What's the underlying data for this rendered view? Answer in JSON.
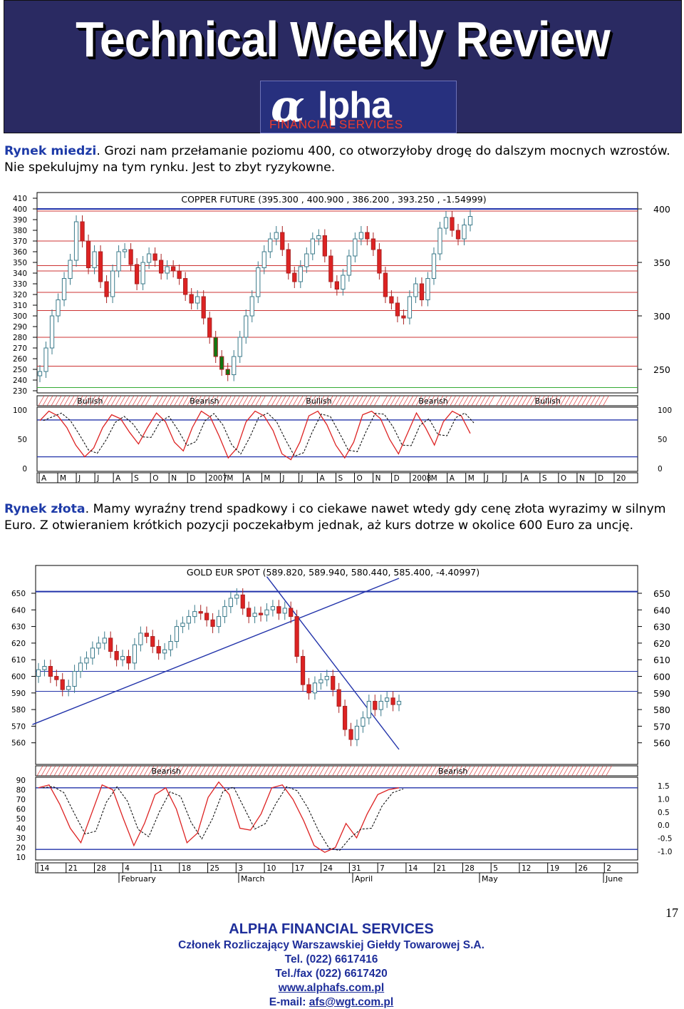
{
  "header": {
    "title": "Technical Weekly Review",
    "logo_main": "lpha",
    "logo_sub": "FINANCIAL SERVICES"
  },
  "copper": {
    "lead": "Rynek miedzi",
    "text": ". Grozi nam przełamanie poziomu 400, co otworzyłoby drogę do dalszym mocnych wzrostów. Nie spekulujmy na tym rynku. Jest to zbyt ryzykowne."
  },
  "gold": {
    "lead": "Rynek złota",
    "text": ". Mamy wyraźny trend spadkowy i co ciekawe nawet wtedy gdy cenę złota wyrazimy w silnym Euro. Z otwieraniem krótkich pozycji poczekałbym jednak, aż kurs dotrze w okolice 600 Euro za uncję."
  },
  "chart_data": [
    {
      "type": "candlestick",
      "title": "COPPER FUTURE (395.300 , 400.900 , 386.200 , 393.250 , -1.54999)",
      "left_axis_ticks": [
        230,
        240,
        250,
        260,
        270,
        280,
        290,
        300,
        310,
        320,
        330,
        340,
        350,
        360,
        370,
        380,
        390,
        400,
        410
      ],
      "right_axis_ticks": [
        250,
        300,
        350,
        400
      ],
      "ylim": [
        230,
        410
      ],
      "hlines": [
        400,
        398,
        370,
        347,
        342,
        322,
        305,
        280,
        253,
        233
      ],
      "trend_labels": [
        "Bullish",
        "Bearish",
        "Bullish",
        "Bearish",
        "Bullish"
      ],
      "oscillator_ticks": [
        0,
        50,
        100
      ],
      "x_labels": [
        "A",
        "M",
        "J",
        "J",
        "A",
        "S",
        "O",
        "N",
        "D",
        "2007",
        "M",
        "A",
        "M",
        "J",
        "J",
        "A",
        "S",
        "O",
        "N",
        "D",
        "2008",
        "M",
        "A",
        "M",
        "J",
        "J",
        "A",
        "S",
        "O",
        "N",
        "D",
        "20"
      ],
      "closes": [
        248,
        270,
        300,
        315,
        335,
        352,
        388,
        370,
        345,
        360,
        332,
        318,
        342,
        360,
        362,
        348,
        330,
        350,
        358,
        352,
        340,
        346,
        342,
        335,
        320,
        312,
        318,
        298,
        280,
        262,
        250,
        245,
        262,
        280,
        300,
        318,
        345,
        360,
        372,
        378,
        362,
        340,
        332,
        346,
        358,
        372,
        375,
        356,
        332,
        325,
        338,
        356,
        372,
        378,
        372,
        362,
        340,
        318,
        312,
        300,
        298,
        318,
        330,
        315,
        335,
        358,
        382,
        392,
        380,
        372,
        385,
        393
      ],
      "oscillator_k": [
        82,
        98,
        90,
        70,
        40,
        20,
        35,
        70,
        92,
        85,
        62,
        42,
        70,
        95,
        80,
        45,
        30,
        70,
        98,
        88,
        55,
        18,
        35,
        80,
        98,
        90,
        65,
        25,
        15,
        45,
        90,
        98,
        75,
        40,
        18,
        45,
        92,
        98,
        85,
        50,
        25,
        60,
        95,
        70,
        40,
        80,
        98,
        90,
        60
      ]
    },
    {
      "type": "candlestick",
      "title": "GOLD EUR SPOT (589.820, 589.940, 580.440, 585.400, -4.40997)",
      "left_axis_ticks": [
        560,
        570,
        580,
        590,
        600,
        610,
        620,
        630,
        640,
        650
      ],
      "right_axis_ticks": [
        560,
        570,
        580,
        590,
        600,
        610,
        620,
        630,
        640,
        650
      ],
      "ylim": [
        553,
        656
      ],
      "hlines": [
        651,
        603,
        591
      ],
      "trend_labels": [
        "Bearish",
        "Bearish"
      ],
      "oscillator_left_ticks": [
        10,
        20,
        30,
        40,
        50,
        60,
        70,
        80,
        90
      ],
      "oscillator_right_ticks": [
        "-1.0",
        "-0.5",
        "0.0",
        "0.5",
        "1.0",
        "1.5"
      ],
      "x_labels": [
        "14",
        "21",
        "28",
        "4",
        "11",
        "18",
        "25",
        "3",
        "10",
        "17",
        "24",
        "31",
        "7",
        "14",
        "21",
        "28",
        "5",
        "12",
        "19",
        "26",
        "2"
      ],
      "month_labels": [
        "February",
        "March",
        "April",
        "May",
        "June"
      ],
      "closes": [
        604,
        606,
        600,
        598,
        592,
        594,
        603,
        608,
        611,
        617,
        620,
        623,
        615,
        610,
        612,
        608,
        619,
        626,
        624,
        618,
        614,
        616,
        621,
        630,
        632,
        636,
        639,
        638,
        634,
        630,
        636,
        642,
        647,
        649,
        641,
        636,
        638,
        637,
        640,
        642,
        638,
        641,
        636,
        612,
        595,
        590,
        596,
        598,
        600,
        592,
        582,
        568,
        562,
        570,
        575,
        585,
        580,
        585,
        587,
        583,
        585
      ],
      "oscillator_k": [
        82,
        85,
        65,
        40,
        25,
        55,
        85,
        80,
        50,
        22,
        45,
        75,
        82,
        60,
        25,
        35,
        72,
        88,
        75,
        40,
        38,
        55,
        82,
        85,
        70,
        48,
        22,
        15,
        20,
        45,
        30,
        55,
        75,
        80,
        82
      ]
    }
  ],
  "footer": {
    "company": "ALPHA FINANCIAL SERVICES",
    "member": "Członek Rozliczający Warszawskiej Giełdy Towarowej S.A.",
    "tel": "Tel. (022) 6617416",
    "fax": "Tel./fax (022) 6617420",
    "www": "www.alphafs.com.pl",
    "email_label": "E-mail: ",
    "email": "afs@wgt.com.pl",
    "page_number": "17"
  }
}
